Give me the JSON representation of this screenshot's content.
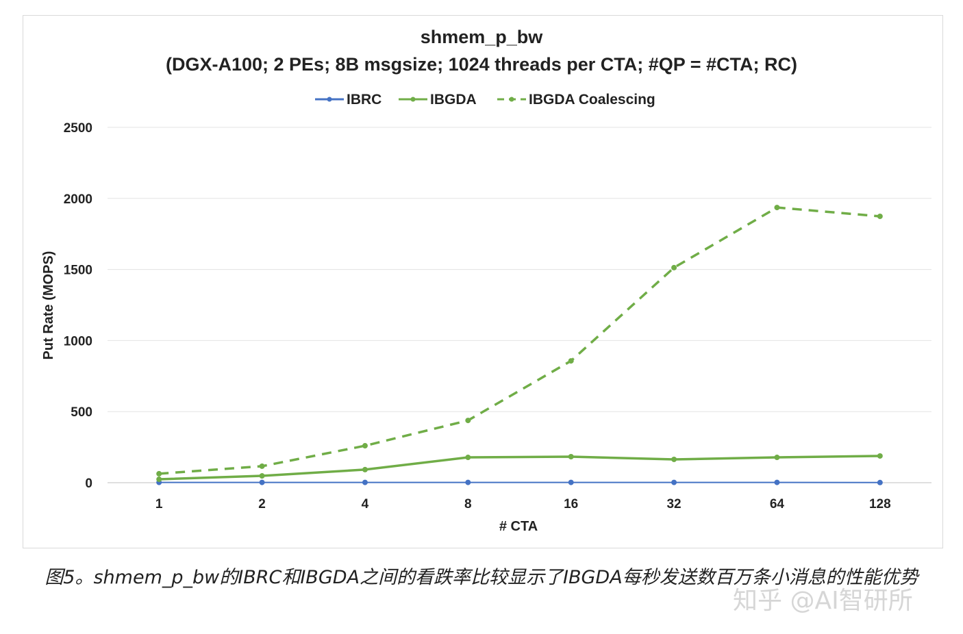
{
  "chart_data": {
    "type": "line",
    "title": "shmem_p_bw",
    "subtitle": "(DGX-A100; 2 PEs; 8B msgsize; 1024 threads per CTA; #QP = #CTA; RC)",
    "xlabel": "# CTA",
    "ylabel": "Put Rate (MOPS)",
    "categories": [
      "1",
      "2",
      "4",
      "8",
      "16",
      "32",
      "64",
      "128"
    ],
    "ylim": [
      0,
      2500
    ],
    "yticks": [
      0,
      500,
      1000,
      1500,
      2000,
      2500
    ],
    "grid": true,
    "legend_position": "top",
    "series": [
      {
        "name": "IBRC",
        "color": "#4472c4",
        "dash": false,
        "values": [
          2,
          2,
          2,
          2,
          2,
          2,
          2,
          1
        ]
      },
      {
        "name": "IBGDA",
        "color": "#70ad47",
        "dash": false,
        "values": [
          24,
          48,
          92,
          178,
          183,
          164,
          178,
          188
        ]
      },
      {
        "name": "IBGDA Coalescing",
        "color": "#70ad47",
        "dash": true,
        "values": [
          63,
          116,
          260,
          438,
          857,
          1513,
          1936,
          1874
        ]
      }
    ]
  },
  "caption": "图5。shmem_p_bw的IBRC和IBGDA之间的看跌率比较显示了IBGDA每秒发送数百万条小消息的性能优势",
  "watermark": "知乎 @AI智研所"
}
